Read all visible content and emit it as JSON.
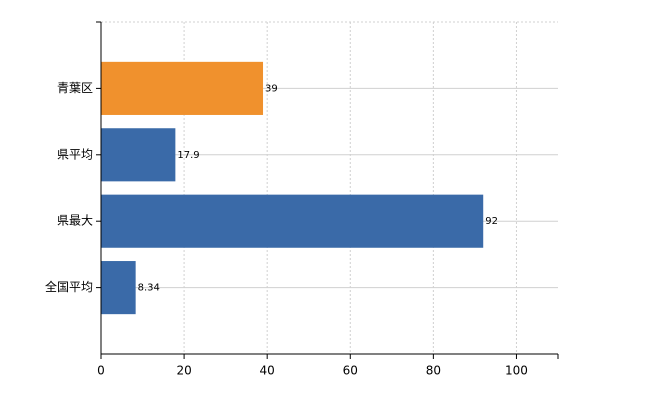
{
  "chart_data": {
    "type": "hbar",
    "categories": [
      "青葉区",
      "県平均",
      "県最大",
      "全国平均"
    ],
    "values": [
      39,
      17.9,
      92,
      8.34
    ],
    "colors": [
      "#f0912d",
      "#3a6aa8",
      "#3a6aa8",
      "#3a6aa8"
    ],
    "xlim": [
      0,
      110
    ],
    "xticks": [
      0,
      20,
      40,
      60,
      80,
      100
    ],
    "grid": true
  }
}
